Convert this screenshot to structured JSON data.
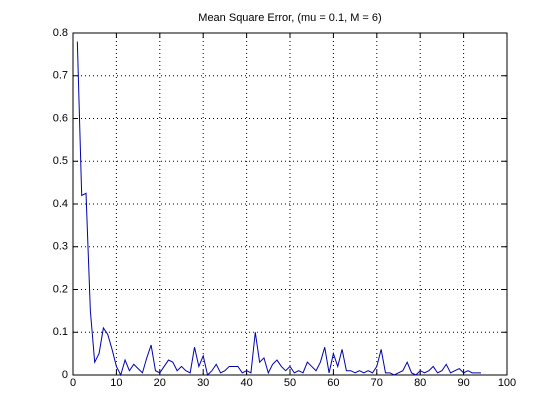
{
  "chart_data": {
    "type": "line",
    "title": "Mean Square Error, (mu = 0.1, M = 6)",
    "x": [
      1,
      2,
      3,
      4,
      5,
      6,
      7,
      8,
      9,
      10,
      11,
      12,
      13,
      14,
      15,
      16,
      17,
      18,
      19,
      20,
      21,
      22,
      23,
      24,
      25,
      26,
      27,
      28,
      29,
      30,
      31,
      32,
      33,
      34,
      35,
      36,
      37,
      38,
      39,
      40,
      41,
      42,
      43,
      44,
      45,
      46,
      47,
      48,
      49,
      50,
      51,
      52,
      53,
      54,
      55,
      56,
      57,
      58,
      59,
      60,
      61,
      62,
      63,
      64,
      65,
      66,
      67,
      68,
      69,
      70,
      71,
      72,
      73,
      74,
      75,
      76,
      77,
      78,
      79,
      80,
      81,
      82,
      83,
      84,
      85,
      86,
      87,
      88,
      89,
      90,
      91,
      92,
      93,
      94
    ],
    "values": [
      0.78,
      0.42,
      0.425,
      0.15,
      0.03,
      0.05,
      0.11,
      0.095,
      0.06,
      0.02,
      0.0,
      0.035,
      0.01,
      0.025,
      0.015,
      0.005,
      0.04,
      0.07,
      0.01,
      0.005,
      0.02,
      0.035,
      0.03,
      0.01,
      0.02,
      0.01,
      0.005,
      0.065,
      0.02,
      0.045,
      0.0,
      0.01,
      0.025,
      0.005,
      0.01,
      0.02,
      0.02,
      0.02,
      0.005,
      0.01,
      0.005,
      0.1,
      0.03,
      0.04,
      0.005,
      0.025,
      0.035,
      0.02,
      0.01,
      0.02,
      0.005,
      0.01,
      0.005,
      0.03,
      0.02,
      0.01,
      0.03,
      0.065,
      0.005,
      0.05,
      0.02,
      0.06,
      0.01,
      0.01,
      0.005,
      0.01,
      0.005,
      0.01,
      0.005,
      0.02,
      0.06,
      0.005,
      0.005,
      0.0,
      0.005,
      0.01,
      0.03,
      0.005,
      0.0,
      0.01,
      0.005,
      0.01,
      0.02,
      0.005,
      0.01,
      0.025,
      0.005,
      0.01,
      0.015,
      0.005,
      0.01,
      0.005,
      0.005,
      0.005
    ],
    "color": "#0000b0",
    "xlim": [
      0,
      100
    ],
    "xticks": [
      0,
      10,
      20,
      30,
      40,
      50,
      60,
      70,
      80,
      90,
      100
    ],
    "ylim": [
      0,
      0.8
    ],
    "yticks": [
      0,
      0.1,
      0.2,
      0.3,
      0.4,
      0.5,
      0.6,
      0.7,
      0.8
    ],
    "grid": true
  }
}
